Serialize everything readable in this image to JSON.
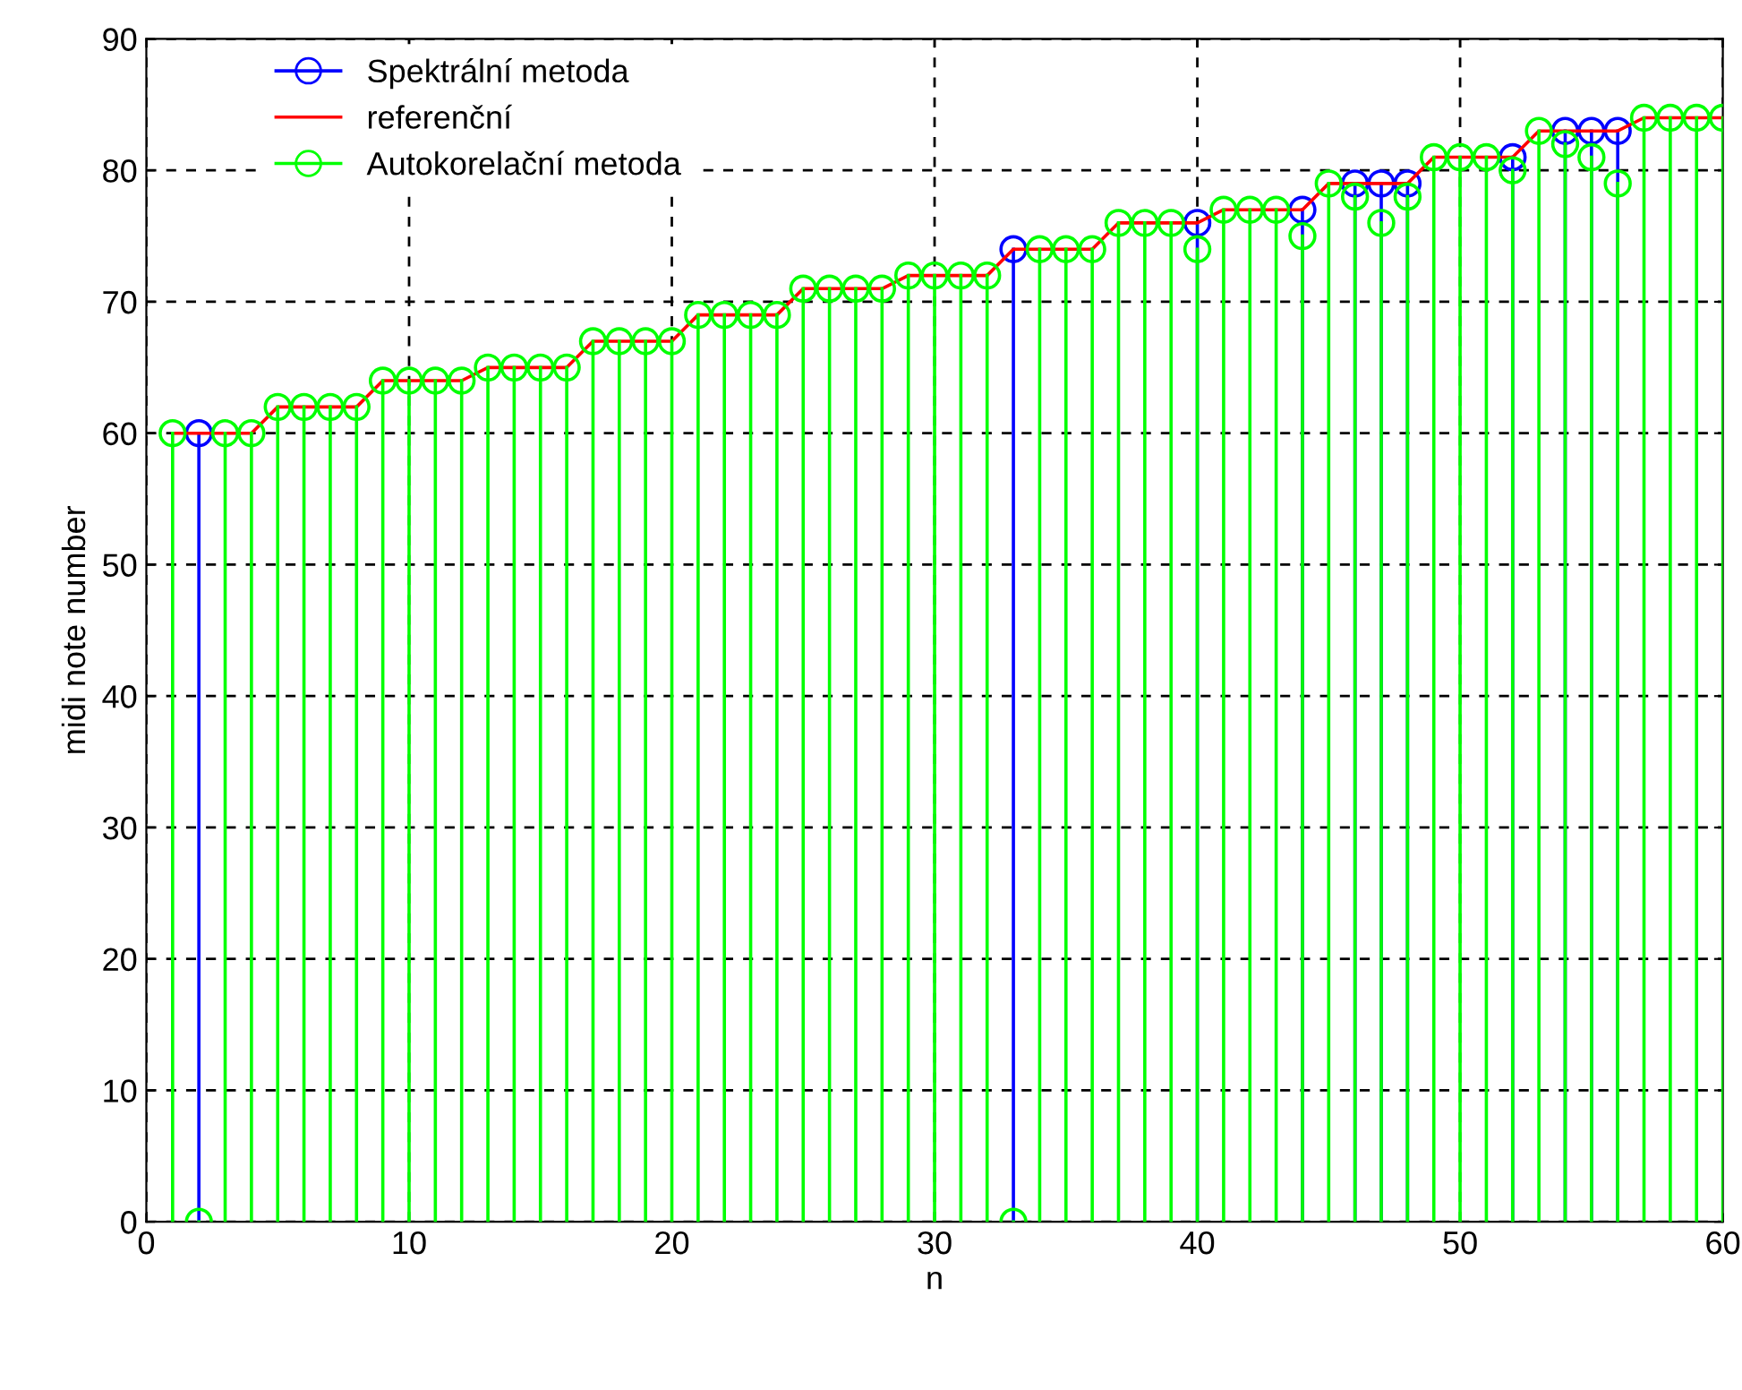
{
  "chart_data": {
    "type": "lollipop",
    "xlabel": "n",
    "ylabel": "midi note number",
    "x": [
      1,
      2,
      3,
      4,
      5,
      6,
      7,
      8,
      9,
      10,
      11,
      12,
      13,
      14,
      15,
      16,
      17,
      18,
      19,
      20,
      21,
      22,
      23,
      24,
      25,
      26,
      27,
      28,
      29,
      30,
      31,
      32,
      33,
      34,
      35,
      36,
      37,
      38,
      39,
      40,
      41,
      42,
      43,
      44,
      45,
      46,
      47,
      48,
      49,
      50,
      51,
      52,
      53,
      54,
      55,
      56,
      57,
      58,
      59,
      60
    ],
    "series": [
      {
        "name": "Spektrální metoda",
        "marker": "circle",
        "color": "#0000ff",
        "values": [
          null,
          60,
          null,
          null,
          null,
          null,
          null,
          null,
          null,
          null,
          null,
          null,
          null,
          null,
          null,
          null,
          null,
          null,
          null,
          null,
          null,
          null,
          null,
          null,
          null,
          null,
          null,
          null,
          null,
          null,
          null,
          null,
          74,
          null,
          null,
          null,
          null,
          null,
          null,
          76,
          null,
          null,
          null,
          77,
          null,
          79,
          79,
          79,
          null,
          null,
          null,
          81,
          null,
          83,
          83,
          83,
          null,
          null,
          null,
          null
        ]
      },
      {
        "name": "referenční",
        "type": "line",
        "marker": "none",
        "color": "#ff0000",
        "values": [
          60,
          60,
          60,
          60,
          62,
          62,
          62,
          62,
          64,
          64,
          64,
          64,
          65,
          65,
          65,
          65,
          67,
          67,
          67,
          67,
          69,
          69,
          69,
          69,
          71,
          71,
          71,
          71,
          72,
          72,
          72,
          72,
          74,
          74,
          74,
          74,
          76,
          76,
          76,
          76,
          77,
          77,
          77,
          77,
          79,
          79,
          79,
          79,
          81,
          81,
          81,
          81,
          83,
          83,
          83,
          83,
          84,
          84,
          84,
          84
        ]
      },
      {
        "name": "Autokorelační metoda",
        "marker": "circle",
        "color": "#00ff00",
        "values": [
          60,
          0,
          60,
          60,
          62,
          62,
          62,
          62,
          64,
          64,
          64,
          64,
          65,
          65,
          65,
          65,
          67,
          67,
          67,
          67,
          69,
          69,
          69,
          69,
          71,
          71,
          71,
          71,
          72,
          72,
          72,
          72,
          0,
          74,
          74,
          74,
          76,
          76,
          76,
          74,
          77,
          77,
          77,
          75,
          79,
          78,
          76,
          78,
          81,
          81,
          81,
          80,
          83,
          82,
          81,
          79,
          84,
          84,
          84,
          84
        ]
      }
    ],
    "line_style": "solid",
    "xlim": [
      0,
      60
    ],
    "xticks": [
      0,
      10,
      20,
      30,
      40,
      50,
      60
    ],
    "ylim": [
      0,
      90
    ],
    "yticks": [
      0,
      10,
      20,
      30,
      40,
      50,
      60,
      70,
      80,
      90
    ],
    "grid": true,
    "legend": "top left"
  }
}
